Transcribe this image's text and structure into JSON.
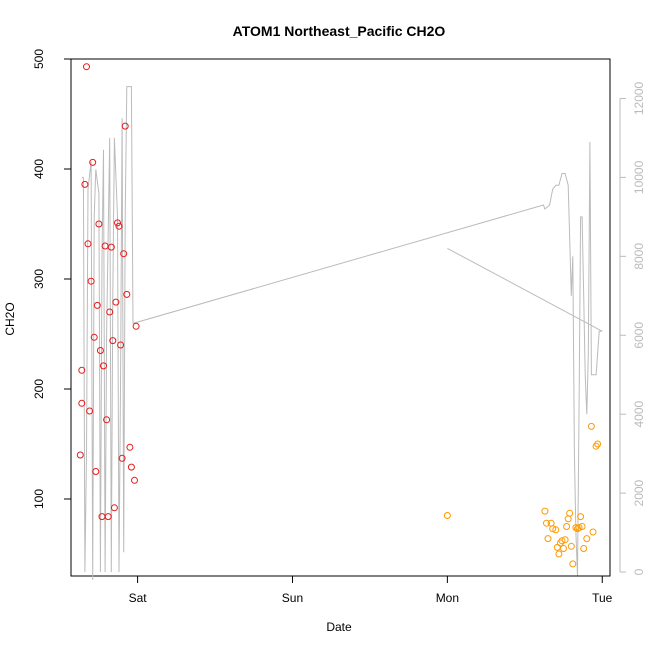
{
  "chart_data": {
    "type": "scatter",
    "title": "ATOM1 Northeast_Pacific CH2O",
    "xlabel": "Date",
    "ylabel": "CH2O",
    "x_unit": "days from Sat 00:00",
    "xlim": [
      -0.43,
      3.05
    ],
    "ylim": [
      30,
      500
    ],
    "y2lim": [
      -100,
      13000
    ],
    "xticks": [
      {
        "x": 0,
        "label": "Sat"
      },
      {
        "x": 1,
        "label": "Sun"
      },
      {
        "x": 2,
        "label": "Mon"
      },
      {
        "x": 3,
        "label": "Tue"
      }
    ],
    "yticks": [
      100,
      200,
      300,
      400,
      500
    ],
    "y2ticks": [
      0,
      2000,
      4000,
      6000,
      8000,
      10000,
      12000
    ],
    "colors": {
      "series_red": "#e41a1c",
      "series_orange": "#ff9900",
      "secondary_line": "#bbbbbb",
      "axis": "#000000",
      "axis_right": "#bbbbbb"
    },
    "series": [
      {
        "color": "#e41a1c",
        "marker": "circle-open",
        "points": [
          [
            -0.37,
            140
          ],
          [
            -0.36,
            217
          ],
          [
            -0.36,
            187
          ],
          [
            -0.34,
            386
          ],
          [
            -0.33,
            493
          ],
          [
            -0.32,
            332
          ],
          [
            -0.31,
            180
          ],
          [
            -0.3,
            298
          ],
          [
            -0.29,
            406
          ],
          [
            -0.28,
            247
          ],
          [
            -0.27,
            125
          ],
          [
            -0.26,
            276
          ],
          [
            -0.25,
            350
          ],
          [
            -0.24,
            235
          ],
          [
            -0.23,
            84
          ],
          [
            -0.22,
            221
          ],
          [
            -0.21,
            330
          ],
          [
            -0.2,
            172
          ],
          [
            -0.19,
            84
          ],
          [
            -0.18,
            270
          ],
          [
            -0.17,
            329
          ],
          [
            -0.16,
            244
          ],
          [
            -0.15,
            92
          ],
          [
            -0.14,
            279
          ],
          [
            -0.13,
            351
          ],
          [
            -0.12,
            348
          ],
          [
            -0.11,
            240
          ],
          [
            -0.1,
            137
          ],
          [
            -0.09,
            323
          ],
          [
            -0.08,
            439
          ],
          [
            -0.07,
            286
          ],
          [
            -0.05,
            147
          ],
          [
            -0.04,
            129
          ],
          [
            -0.02,
            117
          ],
          [
            -0.01,
            257
          ]
        ]
      },
      {
        "color": "#ff9900",
        "marker": "circle-open",
        "points": [
          [
            2.0,
            85
          ],
          [
            2.63,
            89
          ],
          [
            2.64,
            78
          ],
          [
            2.65,
            64
          ],
          [
            2.67,
            78
          ],
          [
            2.68,
            73
          ],
          [
            2.7,
            72
          ],
          [
            2.71,
            56
          ],
          [
            2.72,
            50
          ],
          [
            2.73,
            60
          ],
          [
            2.74,
            62
          ],
          [
            2.75,
            55
          ],
          [
            2.76,
            63
          ],
          [
            2.77,
            75
          ],
          [
            2.78,
            82
          ],
          [
            2.79,
            87
          ],
          [
            2.8,
            57
          ],
          [
            2.81,
            41
          ],
          [
            2.83,
            74
          ],
          [
            2.84,
            73
          ],
          [
            2.85,
            74
          ],
          [
            2.86,
            84
          ],
          [
            2.87,
            75
          ],
          [
            2.88,
            55
          ],
          [
            2.9,
            64
          ],
          [
            2.93,
            166
          ],
          [
            2.94,
            70
          ],
          [
            2.96,
            148
          ],
          [
            2.97,
            150
          ]
        ]
      },
      {
        "type": "line",
        "axis": "right",
        "color": "#bbbbbb",
        "points": [
          [
            -0.36,
            10000
          ],
          [
            -0.35,
            10000
          ],
          [
            -0.34,
            0
          ],
          [
            -0.33,
            3000
          ],
          [
            -0.32,
            9700
          ],
          [
            -0.3,
            10400
          ],
          [
            -0.29,
            -200
          ],
          [
            -0.28,
            9000
          ],
          [
            -0.27,
            10200
          ],
          [
            -0.25,
            9600
          ],
          [
            -0.24,
            0
          ],
          [
            -0.23,
            8000
          ],
          [
            -0.22,
            10700
          ],
          [
            -0.21,
            0
          ],
          [
            -0.2,
            6000
          ],
          [
            -0.18,
            11000
          ],
          [
            -0.17,
            0
          ],
          [
            -0.16,
            7000
          ],
          [
            -0.15,
            11000
          ],
          [
            -0.13,
            9000
          ],
          [
            -0.12,
            0
          ],
          [
            -0.11,
            5000
          ],
          [
            -0.1,
            11500
          ],
          [
            -0.09,
            500
          ],
          [
            -0.08,
            9000
          ],
          [
            -0.07,
            12300
          ],
          [
            -0.05,
            12300
          ],
          [
            -0.04,
            12300
          ],
          [
            -0.03,
            6300
          ],
          [
            2.62,
            9300
          ],
          [
            2.63,
            9200
          ],
          [
            2.66,
            9300
          ],
          [
            2.68,
            9700
          ],
          [
            2.7,
            9800
          ],
          [
            2.72,
            9800
          ],
          [
            2.74,
            10100
          ],
          [
            2.76,
            10100
          ],
          [
            2.78,
            9800
          ],
          [
            2.8,
            7000
          ],
          [
            2.81,
            8000
          ],
          [
            2.82,
            3000
          ],
          [
            2.83,
            1000
          ],
          [
            2.84,
            -100
          ],
          [
            2.85,
            4000
          ],
          [
            2.86,
            9000
          ],
          [
            2.87,
            9000
          ],
          [
            2.88,
            7000
          ],
          [
            2.89,
            5000
          ],
          [
            2.9,
            4000
          ],
          [
            2.91,
            5500
          ],
          [
            2.92,
            10900
          ],
          [
            2.93,
            5000
          ],
          [
            2.96,
            5000
          ],
          [
            2.98,
            6100
          ],
          [
            3.0,
            6100
          ],
          [
            2.0,
            8200
          ]
        ]
      }
    ]
  }
}
